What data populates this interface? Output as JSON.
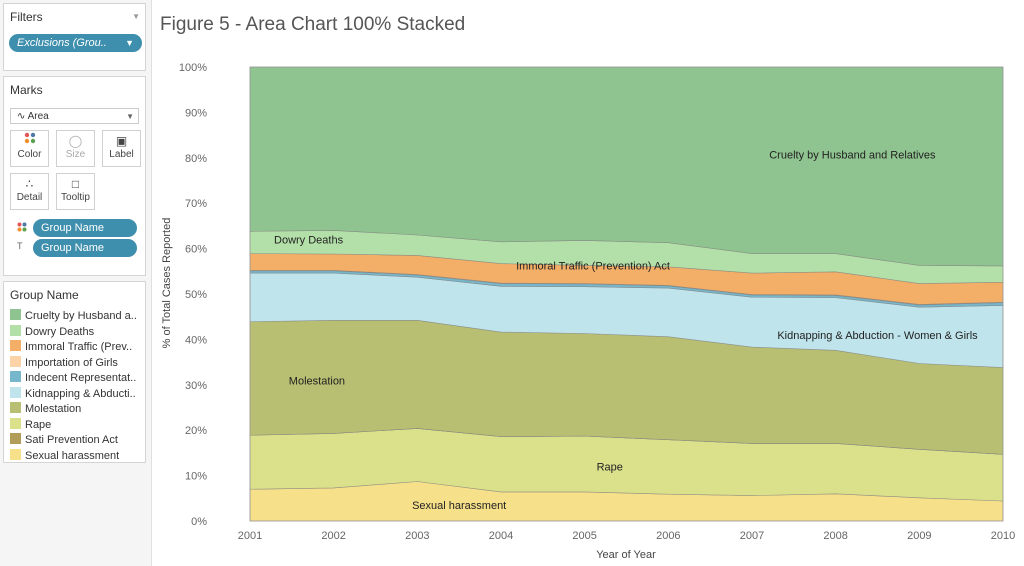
{
  "filters": {
    "title": "Filters",
    "pill": "Exclusions (Grou..",
    "menu_icon": "chevron-down-icon"
  },
  "marks": {
    "title": "Marks",
    "type": "Area",
    "buttons": [
      "Color",
      "Size",
      "Label",
      "Detail",
      "Tooltip"
    ],
    "fields": [
      {
        "icon": "color-dots-icon",
        "label": "Group Name"
      },
      {
        "icon": "text-label-icon",
        "label": "Group Name"
      }
    ]
  },
  "legend": {
    "title": "Group Name",
    "items": [
      {
        "label": "Cruelty by Husband a..",
        "color": "#8fc38f"
      },
      {
        "label": "Dowry Deaths",
        "color": "#b3e0a8"
      },
      {
        "label": "Immoral Traffic (Prev..",
        "color": "#f3ae67"
      },
      {
        "label": "Importation of Girls",
        "color": "#fbd3a6"
      },
      {
        "label": "Indecent Representat..",
        "color": "#77b7cc"
      },
      {
        "label": "Kidnapping & Abducti..",
        "color": "#bfe4ec"
      },
      {
        "label": "Molestation",
        "color": "#b8bf72"
      },
      {
        "label": "Rape",
        "color": "#dbe08b"
      },
      {
        "label": "Sati Prevention Act",
        "color": "#b29c5a"
      },
      {
        "label": "Sexual harassment",
        "color": "#f7e08a"
      }
    ]
  },
  "title": "Figure 5 - Area Chart 100% Stacked",
  "chart_data": {
    "type": "area",
    "stacked": "100%",
    "x": [
      2001,
      2002,
      2003,
      2004,
      2005,
      2006,
      2007,
      2008,
      2009,
      2010
    ],
    "xlabel": "Year of Year",
    "ylabel": "% of Total Cases Reported",
    "yticks": [
      "0%",
      "10%",
      "20%",
      "30%",
      "40%",
      "50%",
      "60%",
      "70%",
      "80%",
      "90%",
      "100%"
    ],
    "ylim": [
      0,
      100
    ],
    "grid": false,
    "series": [
      {
        "name": "Sexual harassment",
        "color": "#f7e08a",
        "values": [
          7.0,
          7.3,
          8.7,
          6.4,
          6.4,
          5.9,
          5.6,
          6.0,
          5.1,
          4.4
        ],
        "label": "Sexual harassment",
        "label_year": 2003.5,
        "label_value": 3.5
      },
      {
        "name": "Rape",
        "color": "#dbe08b",
        "values": [
          11.9,
          12.0,
          11.7,
          12.2,
          12.3,
          12.0,
          11.5,
          11.1,
          10.7,
          10.3
        ],
        "label": "Rape",
        "label_year": 2005.3,
        "label_value": 12
      },
      {
        "name": "Sati Prevention Act",
        "color": "#b29c5a",
        "values": [
          0.0,
          0.0,
          0.0,
          0.0,
          0.0,
          0.0,
          0.0,
          0.0,
          0.0,
          0.0
        ]
      },
      {
        "name": "Molestation",
        "color": "#b8bf72",
        "values": [
          25.0,
          24.9,
          23.8,
          23.0,
          22.6,
          22.7,
          21.2,
          20.5,
          18.9,
          19.1
        ],
        "label": "Molestation",
        "label_year": 2001.8,
        "label_value": 31
      },
      {
        "name": "Kidnapping & Abduction - Women & Girls",
        "color": "#bfe4ec",
        "values": [
          10.7,
          10.4,
          9.5,
          10.1,
          10.3,
          10.7,
          11.0,
          11.6,
          12.4,
          13.7
        ],
        "label": "Kidnapping & Abduction - Women & Girls",
        "label_year": 2008.5,
        "label_value": 41
      },
      {
        "name": "Indecent Representation",
        "color": "#77b7cc",
        "values": [
          0.5,
          0.5,
          0.5,
          0.6,
          0.6,
          0.5,
          0.5,
          0.5,
          0.5,
          0.6
        ]
      },
      {
        "name": "Importation of Girls",
        "color": "#fbd3a6",
        "values": [
          0.1,
          0.1,
          0.1,
          0.1,
          0.1,
          0.1,
          0.1,
          0.1,
          0.1,
          0.1
        ]
      },
      {
        "name": "Immoral Traffic (Prevention) Act",
        "color": "#f3ae67",
        "values": [
          3.7,
          3.6,
          4.2,
          4.3,
          4.0,
          4.1,
          4.7,
          5.1,
          4.6,
          4.4
        ],
        "label": "Immoral Traffic (Prevention) Act",
        "label_year": 2005.1,
        "label_value": 56.3
      },
      {
        "name": "Dowry Deaths",
        "color": "#b3e0a8",
        "values": [
          4.9,
          5.2,
          4.5,
          4.8,
          5.5,
          5.3,
          4.3,
          4.0,
          4.0,
          3.6
        ],
        "label": "Dowry Deaths",
        "label_year": 2001.7,
        "label_value": 62
      },
      {
        "name": "Cruelty by Husband and Relatives",
        "color": "#8fc38f",
        "values": [
          36.2,
          36.0,
          37.0,
          38.5,
          38.2,
          38.7,
          41.1,
          41.1,
          43.7,
          43.8
        ],
        "label": "Cruelty by Husband and Relatives",
        "label_year": 2008.2,
        "label_value": 80.7
      }
    ]
  }
}
